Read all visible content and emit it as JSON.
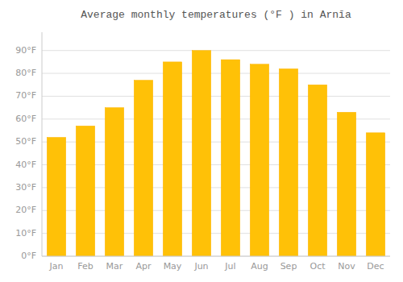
{
  "chart_data": {
    "type": "bar",
    "title": "Average monthly temperatures (°F ) in Arnīa",
    "categories": [
      "Jan",
      "Feb",
      "Mar",
      "Apr",
      "May",
      "Jun",
      "Jul",
      "Aug",
      "Sep",
      "Oct",
      "Nov",
      "Dec"
    ],
    "values": [
      52,
      57,
      65,
      77,
      85,
      90,
      86,
      84,
      82,
      75,
      63,
      54
    ],
    "color": "#FFC107",
    "ylim": [
      0,
      98
    ],
    "yticks": [
      {
        "value": 0,
        "label": "0°F"
      },
      {
        "value": 10,
        "label": "10°F"
      },
      {
        "value": 20,
        "label": "20°F"
      },
      {
        "value": 30,
        "label": "30°F"
      },
      {
        "value": 40,
        "label": "40°F"
      },
      {
        "value": 50,
        "label": "50°F"
      },
      {
        "value": 60,
        "label": "60°F"
      },
      {
        "value": 70,
        "label": "70°F"
      },
      {
        "value": 80,
        "label": "80°F"
      },
      {
        "value": 90,
        "label": "90°F"
      }
    ],
    "grid": true
  }
}
